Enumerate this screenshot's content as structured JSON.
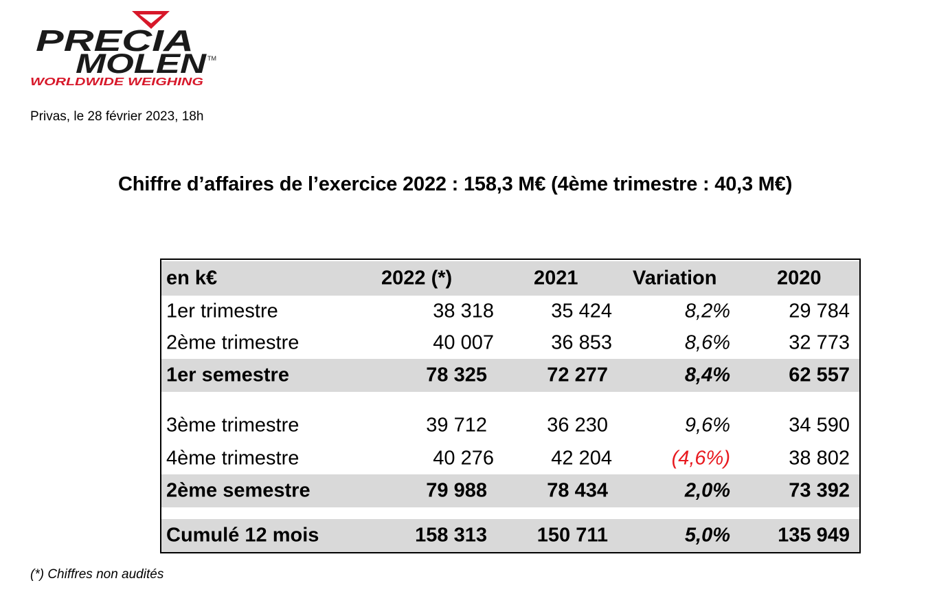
{
  "logo": {
    "line1": "PRECIA",
    "line2": "MOLEN",
    "tm": "™",
    "tagline": "WORLDWIDE WEIGHING",
    "colors": {
      "red": "#d7182a",
      "black": "#1a1a1a"
    }
  },
  "date_line": "Privas, le 28 février 2023, 18h",
  "title": "Chiffre d’affaires de l’exercice 2022 : 158,3 M€ (4ème trimestre : 40,3 M€)",
  "table": {
    "headers": [
      "en k€",
      "2022 (*)",
      "2021",
      "Variation",
      "2020"
    ],
    "rows": [
      {
        "label": "1er trimestre",
        "v2022": "38 318",
        "v2021": "35 424",
        "variation": "8,2%",
        "v2020": "29 784"
      },
      {
        "label": "2ème trimestre",
        "v2022": "40 007",
        "v2021": "36 853",
        "variation": "8,6%",
        "v2020": "32 773"
      },
      {
        "label": "1er semestre",
        "v2022": "78 325",
        "v2021": "72 277",
        "variation": "8,4%",
        "v2020": "62 557"
      },
      {
        "label": "3ème trimestre",
        "v2022": "39 712",
        "v2021": "36 230",
        "variation": "9,6%",
        "v2020": "34 590"
      },
      {
        "label": "4ème trimestre",
        "v2022": "40 276",
        "v2021": "42 204",
        "variation": "(4,6%)",
        "v2020": "38 802"
      },
      {
        "label": "2ème semestre",
        "v2022": "79 988",
        "v2021": "78 434",
        "variation": "2,0%",
        "v2020": "73 392"
      },
      {
        "label": "Cumulé 12 mois",
        "v2022": "158 313",
        "v2021": "150 711",
        "variation": "5,0%",
        "v2020": "135 949"
      }
    ],
    "negative_color": "#e8191f",
    "shade_color": "#d9d9d9"
  },
  "footnote": "(*) Chiffres non audités"
}
